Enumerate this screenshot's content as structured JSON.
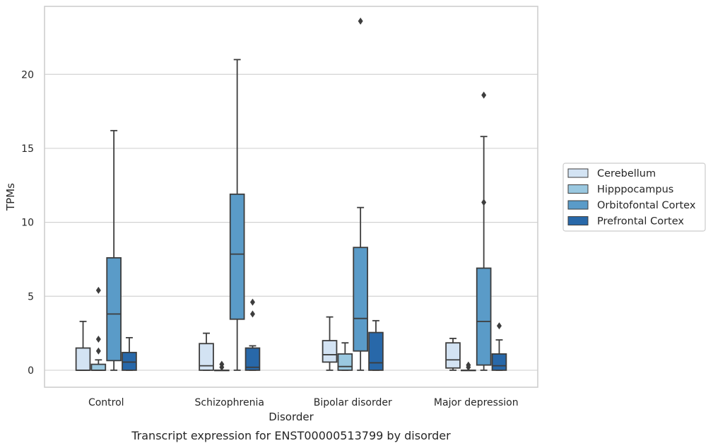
{
  "caption": "Transcript expression for ENST00000513799 by disorder",
  "chart_data": {
    "type": "box",
    "xlabel": "Disorder",
    "ylabel": "TPMs",
    "ylim": [
      -1.15,
      24.6
    ],
    "yticks": [
      0,
      5,
      10,
      15,
      20
    ],
    "grid": true,
    "legend_position": "right",
    "categories": [
      "Control",
      "Schizophrenia",
      "Bipolar disorder",
      "Major depression"
    ],
    "series": [
      {
        "name": "Cerebellum",
        "color": "#d3e3f3",
        "boxes": [
          {
            "min": 0,
            "q1": 0,
            "median": 0,
            "q3": 1.5,
            "max": 3.3,
            "outliers": []
          },
          {
            "min": 0,
            "q1": 0,
            "median": 0.3,
            "q3": 1.8,
            "max": 2.5,
            "outliers": []
          },
          {
            "min": 0,
            "q1": 0.55,
            "median": 1.05,
            "q3": 2.0,
            "max": 3.6,
            "outliers": []
          },
          {
            "min": 0,
            "q1": 0.15,
            "median": 0.7,
            "q3": 1.85,
            "max": 2.15,
            "outliers": []
          }
        ]
      },
      {
        "name": "Hipppocampus",
        "color": "#9ac8e0",
        "boxes": [
          {
            "min": 0,
            "q1": 0,
            "median": 0,
            "q3": 0.4,
            "max": 0.7,
            "outliers": [
              1.3,
              2.1,
              5.4
            ]
          },
          {
            "min": 0,
            "q1": 0,
            "median": 0,
            "q3": 0,
            "max": 0,
            "outliers": [
              0.2,
              0.4
            ]
          },
          {
            "min": 0,
            "q1": 0,
            "median": 0.25,
            "q3": 1.1,
            "max": 1.85,
            "outliers": []
          },
          {
            "min": 0,
            "q1": 0,
            "median": 0,
            "q3": 0,
            "max": 0,
            "outliers": [
              0.2,
              0.35
            ]
          }
        ]
      },
      {
        "name": "Orbitofontal Cortex",
        "color": "#5a9bc8",
        "boxes": [
          {
            "min": 0,
            "q1": 0.65,
            "median": 3.8,
            "q3": 7.6,
            "max": 16.2,
            "outliers": []
          },
          {
            "min": 0,
            "q1": 3.45,
            "median": 7.85,
            "q3": 11.9,
            "max": 21.0,
            "outliers": []
          },
          {
            "min": 0,
            "q1": 1.3,
            "median": 3.5,
            "q3": 8.3,
            "max": 11.0,
            "outliers": [
              23.6
            ]
          },
          {
            "min": 0,
            "q1": 0.35,
            "median": 3.3,
            "q3": 6.9,
            "max": 15.8,
            "outliers": [
              11.35,
              18.6
            ]
          }
        ]
      },
      {
        "name": "Prefrontal Cortex",
        "color": "#2868a9",
        "boxes": [
          {
            "min": 0,
            "q1": 0,
            "median": 0.55,
            "q3": 1.2,
            "max": 2.2,
            "outliers": []
          },
          {
            "min": 0,
            "q1": 0,
            "median": 0.2,
            "q3": 1.5,
            "max": 1.65,
            "outliers": [
              3.8,
              4.6
            ]
          },
          {
            "min": 0,
            "q1": 0,
            "median": 0.5,
            "q3": 2.55,
            "max": 3.35,
            "outliers": []
          },
          {
            "min": 0,
            "q1": 0,
            "median": 0.3,
            "q3": 1.1,
            "max": 2.05,
            "outliers": [
              3.0
            ]
          }
        ]
      }
    ]
  }
}
